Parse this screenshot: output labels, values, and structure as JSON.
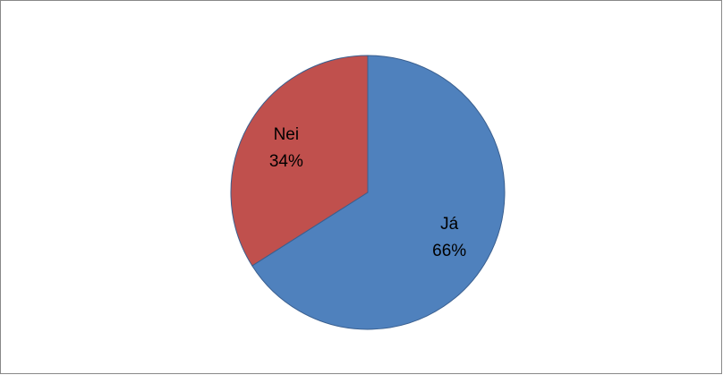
{
  "chart_data": {
    "type": "pie",
    "categories": [
      "Já",
      "Nei"
    ],
    "values": [
      66,
      34
    ],
    "value_labels": [
      "66%",
      "34%"
    ],
    "colors": [
      "#4f81bd",
      "#c0504d"
    ]
  }
}
